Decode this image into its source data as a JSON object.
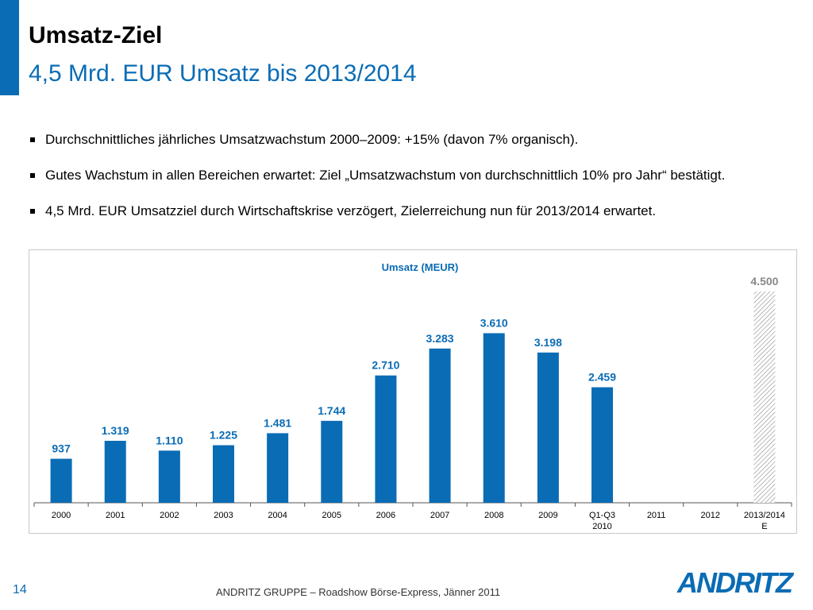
{
  "slide": {
    "title": "Umsatz-Ziel",
    "subtitle": "4,5 Mrd. EUR Umsatz bis 2013/2014",
    "bullets": [
      "Durchschnittliches jährliches Umsatzwachstum 2000–2009: +15% (davon 7% organisch).",
      "Gutes Wachstum in allen Bereichen erwartet: Ziel „Umsatzwachstum von durchschnittlich 10% pro Jahr“ bestätigt.",
      "4,5 Mrd. EUR Umsatzziel durch Wirtschaftskrise verzögert, Zielerreichung nun für 2013/2014 erwartet."
    ],
    "page_number": "14",
    "footer": "ANDRITZ GRUPPE – Roadshow Börse-Express, Jänner 2011",
    "logo_text": "ANDRITZ"
  },
  "colors": {
    "accent": "#0a6cb5",
    "bar": "#0a6cb5",
    "target_label": "#888888",
    "text": "#000000"
  },
  "chart_data": {
    "type": "bar",
    "title": "Umsatz (MEUR)",
    "categories": [
      "2000",
      "2001",
      "2002",
      "2003",
      "2004",
      "2005",
      "2006",
      "2007",
      "2008",
      "2009",
      "Q1-Q3\n2010",
      "2011",
      "2012",
      "2013/2014\nE"
    ],
    "values": [
      937,
      1319,
      1110,
      1225,
      1481,
      1744,
      2710,
      3283,
      3610,
      3198,
      2459,
      null,
      null,
      4500
    ],
    "value_labels": [
      "937",
      "1.319",
      "1.110",
      "1.225",
      "1.481",
      "1.744",
      "2.710",
      "3.283",
      "3.610",
      "3.198",
      "2.459",
      "",
      "",
      "4.500"
    ],
    "bar_styles": [
      "solid",
      "solid",
      "solid",
      "solid",
      "solid",
      "solid",
      "solid",
      "solid",
      "solid",
      "solid",
      "solid",
      "none",
      "none",
      "hatched"
    ],
    "ylim": [
      0,
      4700
    ],
    "xlabel": "",
    "ylabel": "",
    "grid": false,
    "legend": "none"
  }
}
